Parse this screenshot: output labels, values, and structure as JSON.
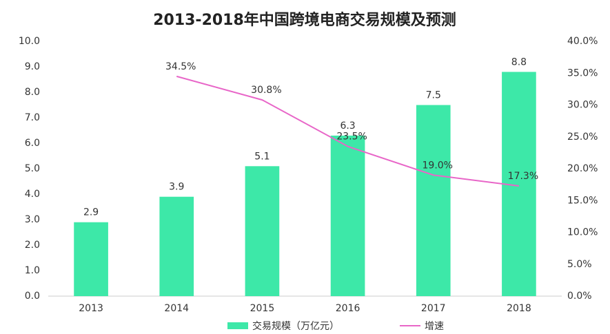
{
  "chart_data": {
    "type": "bar",
    "title": "2013-2018年中国跨境电商交易规模及预测",
    "categories": [
      "2013",
      "2014",
      "2015",
      "2016",
      "2017",
      "2018"
    ],
    "series": [
      {
        "name": "交易规模（万亿元）",
        "type": "bar",
        "color": "#3de8a8",
        "values": [
          2.9,
          3.9,
          5.1,
          6.3,
          7.5,
          8.8
        ]
      },
      {
        "name": "增速",
        "type": "line",
        "axis": "y2",
        "color": "#e866c8",
        "values": [
          null,
          34.5,
          30.8,
          23.5,
          19.0,
          17.3
        ],
        "value_labels": [
          null,
          "34.5%",
          "30.8%",
          "23.5%",
          "19.0%",
          "17.3%"
        ]
      }
    ],
    "ylim": [
      0,
      10
    ],
    "yticks": [
      {
        "value": 0,
        "label": "0.0"
      },
      {
        "value": 1,
        "label": "1.0"
      },
      {
        "value": 2,
        "label": "2.0"
      },
      {
        "value": 3,
        "label": "3.0"
      },
      {
        "value": 4,
        "label": "4.0"
      },
      {
        "value": 5,
        "label": "5.0"
      },
      {
        "value": 6,
        "label": "6.0"
      },
      {
        "value": 7,
        "label": "7.0"
      },
      {
        "value": 8,
        "label": "8.0"
      },
      {
        "value": 9,
        "label": "9.0"
      },
      {
        "value": 10,
        "label": "10.0"
      }
    ],
    "y2lim": [
      0,
      40
    ],
    "y2ticks": [
      {
        "value": 0,
        "label": "0.0%"
      },
      {
        "value": 5,
        "label": "5.0%"
      },
      {
        "value": 10,
        "label": "10.0%"
      },
      {
        "value": 15,
        "label": "15.0%"
      },
      {
        "value": 20,
        "label": "20.0%"
      },
      {
        "value": 25,
        "label": "25.0%"
      },
      {
        "value": 30,
        "label": "30.0%"
      },
      {
        "value": 35,
        "label": "35.0%"
      },
      {
        "value": 40,
        "label": "40.0%"
      }
    ],
    "grid": false,
    "legend": "bottom"
  }
}
